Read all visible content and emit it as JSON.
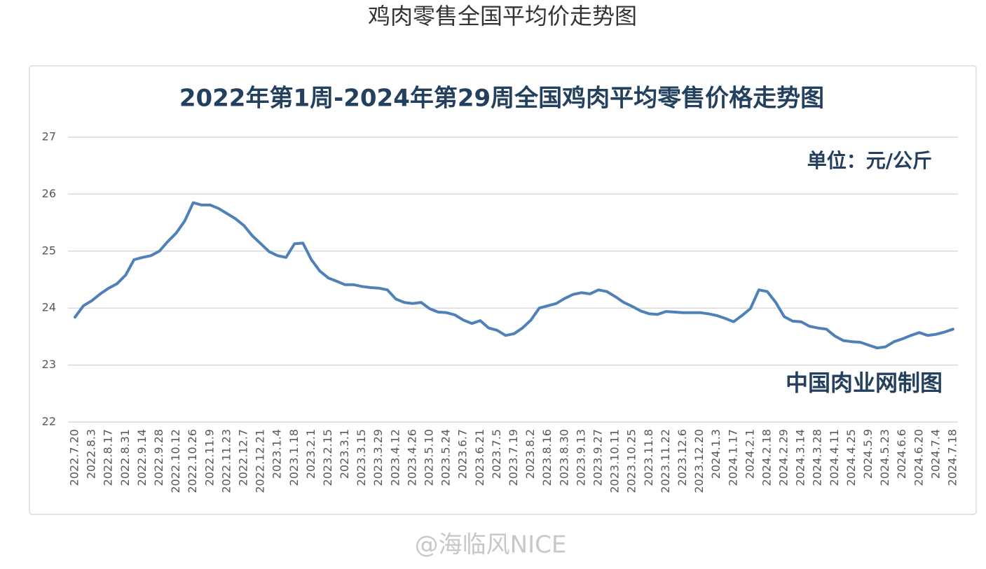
{
  "header": {
    "title": "鸡肉零售全国平均价走势图"
  },
  "chart_data": {
    "type": "line",
    "title": "2022年第1周-2024年第29周全国鸡肉平均零售价格走势图",
    "unit": "单位：元/公斤",
    "source": "中国肉业网制图",
    "color": "#5080b8",
    "grid": true,
    "ylim": [
      22,
      27
    ],
    "yticks": [
      22,
      23,
      24,
      25,
      26,
      27
    ],
    "categories": [
      "2022.7.20",
      null,
      "2022.8.3",
      null,
      "2022.8.17",
      null,
      "2022.8.31",
      null,
      "2022.9.14",
      null,
      "2022.9.28",
      null,
      "2022.10.12",
      null,
      "2022.10.26",
      null,
      "2022.11.9",
      null,
      "2022.11.23",
      null,
      "2022.12.7",
      null,
      "2022.12.21",
      null,
      "2023.1.4",
      null,
      "2023.1.18",
      null,
      "2023.2.1",
      null,
      "2023.2.15",
      null,
      "2023.3.1",
      null,
      "2023.3.15",
      null,
      "2023.3.29",
      null,
      "2023.4.12",
      null,
      "2023.4.26",
      null,
      "2023.5.10",
      null,
      "2023.5.24",
      null,
      "2023.6.7",
      null,
      "2023.6.21",
      null,
      "2023.7.5",
      null,
      "2023.7.19",
      null,
      "2023.8.2",
      null,
      "2023.8.16",
      null,
      "2023.8.30",
      null,
      "2023.9.13",
      null,
      "2023.9.27",
      null,
      "2023.10.11",
      null,
      "2023.10.25",
      null,
      "2023.11.8",
      null,
      "2023.11.22",
      null,
      "2023.12.6",
      null,
      "2023.12.20",
      null,
      "2024.1.3",
      null,
      "2024.1.17",
      null,
      "2024.2.1",
      null,
      "2024.2.18",
      null,
      "2024.2.29",
      null,
      "2024.3.14",
      null,
      "2024.3.28",
      null,
      "2024.4.11",
      null,
      "2024.4.25",
      null,
      "2024.5.9",
      null,
      "2024.5.23",
      null,
      "2024.6.6",
      null,
      "2024.6.20",
      null,
      "2024.7.4",
      null,
      "2024.7.18"
    ],
    "values": [
      23.84,
      24.04,
      24.13,
      24.25,
      24.35,
      24.43,
      24.58,
      24.85,
      24.89,
      24.92,
      25.0,
      25.17,
      25.32,
      25.53,
      25.85,
      25.81,
      25.81,
      25.75,
      25.66,
      25.57,
      25.45,
      25.27,
      25.13,
      24.99,
      24.92,
      24.89,
      25.13,
      25.14,
      24.85,
      24.65,
      24.53,
      24.47,
      24.41,
      24.41,
      24.38,
      24.36,
      24.35,
      24.32,
      24.16,
      24.1,
      24.08,
      24.1,
      23.99,
      23.93,
      23.92,
      23.88,
      23.79,
      23.73,
      23.78,
      23.65,
      23.61,
      23.52,
      23.55,
      23.65,
      23.79,
      24.0,
      24.04,
      24.08,
      24.17,
      24.24,
      24.27,
      24.25,
      24.32,
      24.29,
      24.2,
      24.1,
      24.03,
      23.95,
      23.9,
      23.89,
      23.94,
      23.93,
      23.92,
      23.92,
      23.92,
      23.9,
      23.87,
      23.82,
      23.76,
      23.87,
      23.99,
      24.32,
      24.29,
      24.1,
      23.85,
      23.77,
      23.76,
      23.68,
      23.65,
      23.63,
      23.51,
      23.43,
      23.41,
      23.4,
      23.35,
      23.3,
      23.32,
      23.41,
      23.46,
      23.52,
      23.57,
      23.52,
      23.54,
      23.58,
      23.63
    ]
  },
  "watermark": "@海临风NICE"
}
